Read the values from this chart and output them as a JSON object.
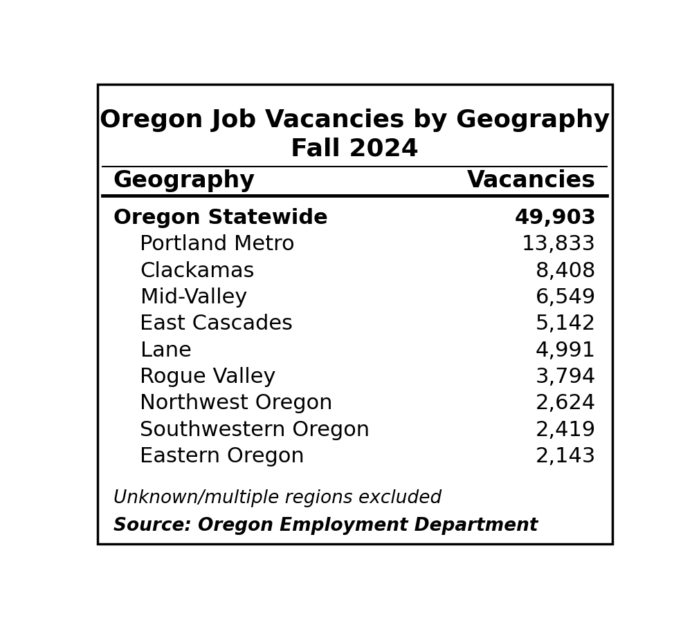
{
  "title_line1": "Oregon Job Vacancies by Geography",
  "title_line2": "Fall 2024",
  "col_headers": [
    "Geography",
    "Vacancies"
  ],
  "rows": [
    {
      "label": "Oregon Statewide",
      "value": "49,903",
      "bold": true,
      "indent": false
    },
    {
      "label": "Portland Metro",
      "value": "13,833",
      "bold": false,
      "indent": true
    },
    {
      "label": "Clackamas",
      "value": "8,408",
      "bold": false,
      "indent": true
    },
    {
      "label": "Mid-Valley",
      "value": "6,549",
      "bold": false,
      "indent": true
    },
    {
      "label": "East Cascades",
      "value": "5,142",
      "bold": false,
      "indent": true
    },
    {
      "label": "Lane",
      "value": "4,991",
      "bold": false,
      "indent": true
    },
    {
      "label": "Rogue Valley",
      "value": "3,794",
      "bold": false,
      "indent": true
    },
    {
      "label": "Northwest Oregon",
      "value": "2,624",
      "bold": false,
      "indent": true
    },
    {
      "label": "Southwestern Oregon",
      "value": "2,419",
      "bold": false,
      "indent": true
    },
    {
      "label": "Eastern Oregon",
      "value": "2,143",
      "bold": false,
      "indent": true
    }
  ],
  "footnote1": "Unknown/multiple regions excluded",
  "footnote2": "Source: Oregon Employment Department",
  "bg_color": "#ffffff",
  "border_color": "#000000",
  "text_color": "#000000",
  "title_fontsize": 26,
  "header_fontsize": 24,
  "row_fontsize": 22,
  "footnote_fontsize": 19
}
